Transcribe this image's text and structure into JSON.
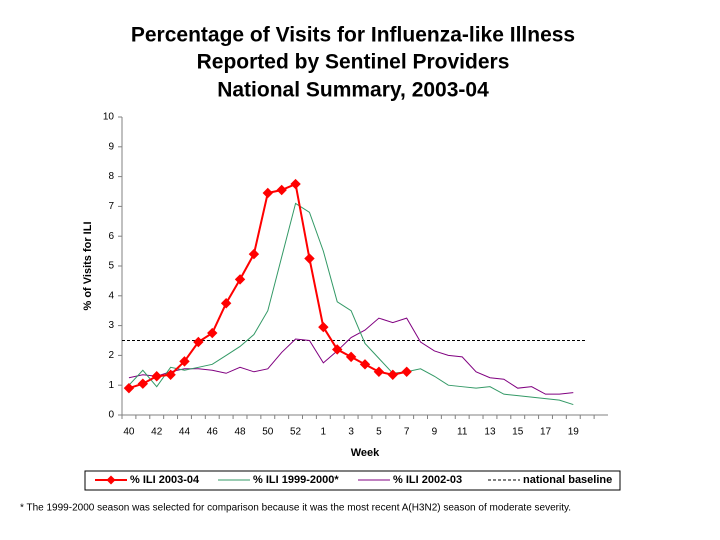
{
  "chart_data": {
    "type": "line",
    "title": [
      "Percentage of Visits for Influenza-like Illness",
      "Reported by Sentinel Providers",
      "National Summary, 2003-04"
    ],
    "xlabel": "Week",
    "ylabel": "% of Visits for ILI",
    "categories": [
      "40",
      null,
      "42",
      null,
      "44",
      null,
      "46",
      null,
      "48",
      null,
      "50",
      null,
      "52",
      null,
      "1",
      null,
      "3",
      null,
      "5",
      null,
      "7",
      null,
      "9",
      null,
      "11",
      null,
      "13",
      null,
      "15",
      null,
      "17",
      null,
      "19",
      null,
      null
    ],
    "ylim": [
      0,
      10
    ],
    "yticks": [
      0,
      1,
      2,
      3,
      4,
      5,
      6,
      7,
      8,
      9,
      10
    ],
    "grid": false,
    "series": [
      {
        "name": "% ILI 2003-04",
        "color": "#ff0000",
        "marker": "diamond",
        "values": [
          0.9,
          1.05,
          1.3,
          1.35,
          1.8,
          2.45,
          2.75,
          3.75,
          4.55,
          5.4,
          7.45,
          7.55,
          7.75,
          5.25,
          2.95,
          2.2,
          1.95,
          1.7,
          1.45,
          1.35,
          1.45,
          null,
          null,
          null,
          null,
          null,
          null,
          null,
          null,
          null,
          null,
          null,
          null,
          null,
          null
        ]
      },
      {
        "name": "% ILI 1999-2000*",
        "color": "#339966",
        "values": [
          1.0,
          1.5,
          0.95,
          1.6,
          1.5,
          1.6,
          1.7,
          2.0,
          2.3,
          2.7,
          3.5,
          5.3,
          7.1,
          6.8,
          5.5,
          3.8,
          3.5,
          2.4,
          1.9,
          1.4,
          1.45,
          1.55,
          1.3,
          1.0,
          0.95,
          0.9,
          0.95,
          0.7,
          0.65,
          0.6,
          0.55,
          0.5,
          0.35,
          null,
          null
        ]
      },
      {
        "name": "% ILI 2002-03",
        "color": "#800080",
        "values": [
          1.25,
          1.35,
          1.3,
          1.45,
          1.55,
          1.55,
          1.5,
          1.4,
          1.6,
          1.45,
          1.55,
          2.1,
          2.55,
          2.5,
          1.75,
          2.15,
          2.6,
          2.85,
          3.25,
          3.1,
          3.25,
          2.45,
          2.15,
          2.0,
          1.95,
          1.45,
          1.25,
          1.2,
          0.9,
          0.95,
          0.7,
          0.7,
          0.75,
          null,
          null
        ]
      }
    ],
    "baseline": {
      "name": "national baseline",
      "value": 2.5,
      "color": "#000000"
    },
    "legend": "bottom",
    "footnote": "* The 1999-2000 season was selected for comparison because it was the most recent A(H3N2) season of moderate severity."
  }
}
